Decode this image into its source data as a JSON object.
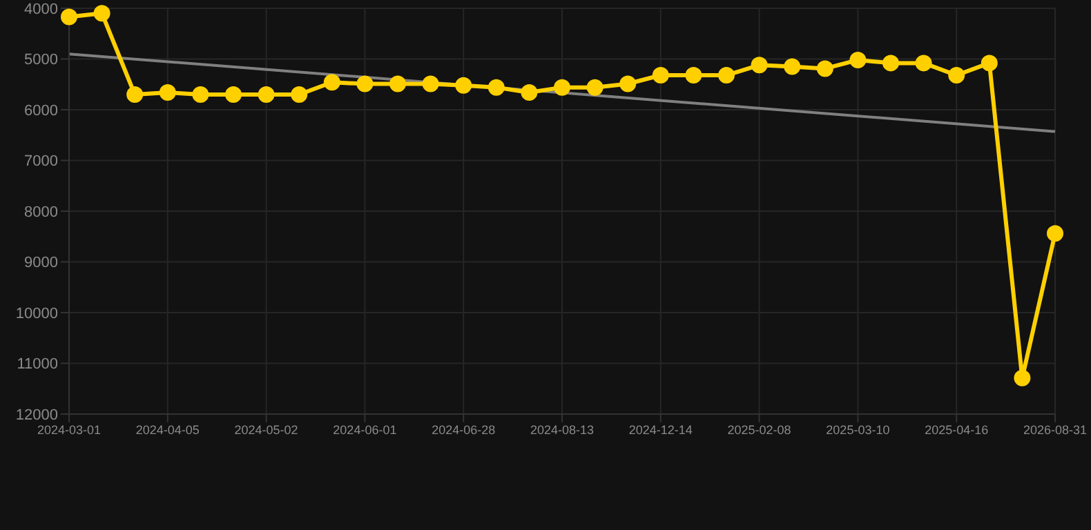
{
  "chart_data": {
    "type": "line",
    "categories": [
      "2024-03-01",
      null,
      null,
      "2024-04-05",
      null,
      null,
      "2024-05-02",
      null,
      null,
      "2024-06-01",
      null,
      null,
      "2024-06-28",
      null,
      null,
      "2024-08-13",
      null,
      null,
      "2024-12-14",
      null,
      null,
      "2025-02-08",
      null,
      null,
      "2025-03-10",
      null,
      null,
      "2025-04-16",
      null,
      null,
      "2026-08-31"
    ],
    "series": [
      {
        "color": "#ffd000",
        "marker": "circle",
        "values": [
          4170,
          4100,
          5700,
          5660,
          5700,
          5700,
          5700,
          5700,
          5460,
          5490,
          5490,
          5490,
          5520,
          5560,
          5660,
          5560,
          5560,
          5490,
          5320,
          5320,
          5320,
          5120,
          5150,
          5190,
          5020,
          5080,
          5080,
          5320,
          5080,
          11290,
          8440
        ]
      },
      {
        "type": "line",
        "color": "#808080",
        "marker": "none",
        "values": [
          4900,
          null,
          null,
          null,
          null,
          null,
          null,
          null,
          null,
          null,
          null,
          null,
          null,
          null,
          null,
          null,
          null,
          null,
          null,
          null,
          null,
          null,
          null,
          null,
          null,
          null,
          null,
          null,
          null,
          null,
          6430
        ]
      }
    ],
    "ylim": [
      12000,
      4000
    ],
    "yticks": [
      4000,
      5000,
      6000,
      7000,
      8000,
      9000,
      10000,
      11000,
      12000
    ],
    "grid": true,
    "line_style": "solid"
  }
}
